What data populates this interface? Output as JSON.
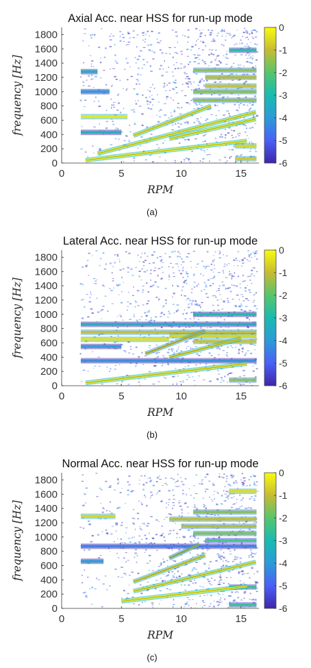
{
  "colorscale": {
    "stops": [
      "#3e26a8",
      "#4a60f7",
      "#2c9bd8",
      "#18bbb0",
      "#57c56c",
      "#c6bb32",
      "#f9fb0e"
    ]
  },
  "chart_data": [
    {
      "type": "heatmap",
      "title": "Axial Acc. near HSS for run-up mode",
      "xlabel": "RPM",
      "ylabel": "frequency [Hz]",
      "caption": "(a)",
      "xlim": [
        0,
        16.5
      ],
      "ylim": [
        0,
        1900
      ],
      "xticks": [
        0,
        5,
        10,
        15
      ],
      "yticks": [
        0,
        200,
        400,
        600,
        800,
        1000,
        1200,
        1400,
        1600,
        1800
      ],
      "colorbar": {
        "range": [
          -6,
          0
        ],
        "ticks": [
          0,
          -1,
          -2,
          -3,
          -4,
          -5,
          -6
        ]
      },
      "rpm_range": [
        1.5,
        16.3
      ],
      "bands": [
        {
          "f": 650,
          "from": 1.6,
          "to": 5.5,
          "level": -0.3
        },
        {
          "f": 240,
          "from": 14.5,
          "to": 16.3,
          "level": -0.6
        },
        {
          "f": 60,
          "from": 14.5,
          "to": 16.3,
          "level": -0.8
        },
        {
          "f": 880,
          "from": 11.0,
          "to": 16.3,
          "level": -1.5
        },
        {
          "f": 1000,
          "from": 11.0,
          "to": 16.3,
          "level": -1.6
        },
        {
          "f": 1080,
          "from": 12.0,
          "to": 16.3,
          "level": -0.9
        },
        {
          "f": 1200,
          "from": 12.0,
          "to": 16.3,
          "level": -1.2
        },
        {
          "f": 1300,
          "from": 11.0,
          "to": 16.3,
          "level": -1.5
        },
        {
          "f": 1580,
          "from": 14.0,
          "to": 16.3,
          "level": -2.8
        },
        {
          "f": 1280,
          "from": 1.6,
          "to": 3.0,
          "level": -3.5
        },
        {
          "f": 1000,
          "from": 1.6,
          "to": 4.0,
          "level": -4.0
        },
        {
          "f": 430,
          "from": 1.6,
          "to": 5.0,
          "level": -3.3
        }
      ],
      "orders": [
        {
          "hz_per_rpm": 20,
          "from": 2.0,
          "to": 15.5,
          "level": -0.2
        },
        {
          "hz_per_rpm": 44,
          "from": 3.0,
          "to": 16.3,
          "level": -0.3
        },
        {
          "hz_per_rpm": 64,
          "from": 6.0,
          "to": 12.5,
          "level": -0.4
        },
        {
          "hz_per_rpm": 38,
          "from": 9.0,
          "to": 16.3,
          "level": -0.3
        }
      ]
    },
    {
      "type": "heatmap",
      "title": "Lateral Acc. near HSS for run-up mode",
      "xlabel": "RPM",
      "ylabel": "frequency [Hz]",
      "caption": "(b)",
      "xlim": [
        0,
        16.5
      ],
      "ylim": [
        0,
        1900
      ],
      "xticks": [
        0,
        5,
        10,
        15
      ],
      "yticks": [
        0,
        200,
        400,
        600,
        800,
        1000,
        1200,
        1400,
        1600,
        1800
      ],
      "colorbar": {
        "range": [
          -6,
          0
        ],
        "ticks": [
          0,
          -1,
          -2,
          -3,
          -4,
          -5,
          -6
        ]
      },
      "rpm_range": [
        1.5,
        16.3
      ],
      "bands": [
        {
          "f": 750,
          "from": 1.6,
          "to": 16.3,
          "level": -1.0
        },
        {
          "f": 700,
          "from": 9.0,
          "to": 16.3,
          "level": -0.6
        },
        {
          "f": 650,
          "from": 1.6,
          "to": 9.0,
          "level": -0.4
        },
        {
          "f": 620,
          "from": 11.0,
          "to": 16.3,
          "level": -0.9
        },
        {
          "f": 860,
          "from": 1.6,
          "to": 16.3,
          "level": -3.5
        },
        {
          "f": 1000,
          "from": 11.0,
          "to": 16.3,
          "level": -3.0
        },
        {
          "f": 80,
          "from": 14.0,
          "to": 16.3,
          "level": -1.5
        },
        {
          "f": 550,
          "from": 1.6,
          "to": 5.0,
          "level": -4.0
        },
        {
          "f": 350,
          "from": 1.6,
          "to": 16.3,
          "level": -4.2
        }
      ],
      "orders": [
        {
          "hz_per_rpm": 20,
          "from": 2.0,
          "to": 15.5,
          "level": -0.3
        },
        {
          "hz_per_rpm": 44,
          "from": 9.0,
          "to": 15.0,
          "level": -0.6
        },
        {
          "hz_per_rpm": 64,
          "from": 7.0,
          "to": 12.0,
          "level": -1.0
        }
      ]
    },
    {
      "type": "heatmap",
      "title": "Normal Acc. near HSS for run-up mode",
      "xlabel": "RPM",
      "ylabel": "frequency [Hz]",
      "caption": "(c)",
      "xlim": [
        0,
        16.5
      ],
      "ylim": [
        0,
        1900
      ],
      "xticks": [
        0,
        5,
        10,
        15
      ],
      "yticks": [
        0,
        200,
        400,
        600,
        800,
        1000,
        1200,
        1400,
        1600,
        1800
      ],
      "colorbar": {
        "range": [
          -6,
          0
        ],
        "ticks": [
          0,
          -1,
          -2,
          -3,
          -4,
          -5,
          -6
        ]
      },
      "rpm_range": [
        1.5,
        16.3
      ],
      "bands": [
        {
          "f": 1290,
          "from": 1.6,
          "to": 4.5,
          "level": -0.6
        },
        {
          "f": 1250,
          "from": 9.0,
          "to": 16.3,
          "level": -1.1
        },
        {
          "f": 1150,
          "from": 10.0,
          "to": 16.3,
          "level": -1.2
        },
        {
          "f": 1350,
          "from": 11.0,
          "to": 16.3,
          "level": -1.6
        },
        {
          "f": 1050,
          "from": 11.0,
          "to": 16.3,
          "level": -1.7
        },
        {
          "f": 950,
          "from": 12.0,
          "to": 16.3,
          "level": -2.2
        },
        {
          "f": 1640,
          "from": 14.0,
          "to": 16.3,
          "level": -0.5
        },
        {
          "f": 870,
          "from": 1.6,
          "to": 16.3,
          "level": -4.5
        },
        {
          "f": 660,
          "from": 1.6,
          "to": 3.5,
          "level": -4.0
        },
        {
          "f": 300,
          "from": 14.0,
          "to": 16.3,
          "level": -2.5
        },
        {
          "f": 50,
          "from": 14.0,
          "to": 16.3,
          "level": -2.5
        }
      ],
      "orders": [
        {
          "hz_per_rpm": 20,
          "from": 5.0,
          "to": 15.5,
          "level": -0.2
        },
        {
          "hz_per_rpm": 40,
          "from": 6.0,
          "to": 16.3,
          "level": -0.4
        },
        {
          "hz_per_rpm": 62,
          "from": 6.0,
          "to": 12.0,
          "level": -0.7
        },
        {
          "hz_per_rpm": 78,
          "from": 9.0,
          "to": 11.5,
          "level": -1.5
        }
      ]
    }
  ]
}
